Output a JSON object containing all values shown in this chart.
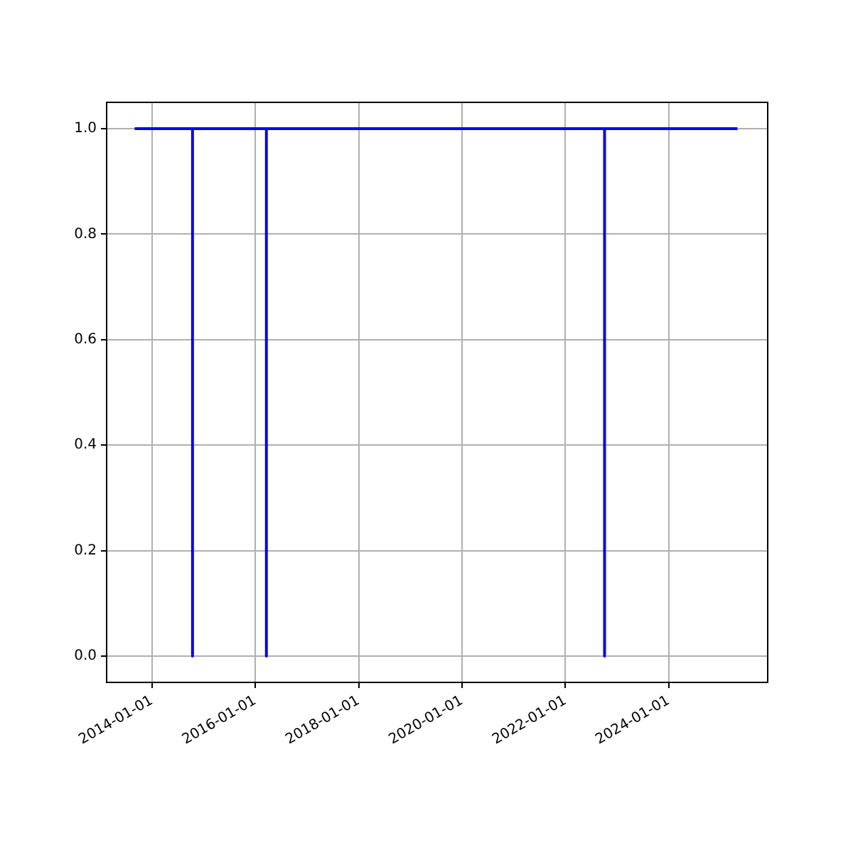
{
  "chart_data": {
    "type": "line",
    "x": [
      "2013-09-01",
      "2014-10-15",
      "2014-10-15",
      "2014-10-15",
      "2016-03-20",
      "2016-03-20",
      "2016-03-20",
      "2022-10-05",
      "2022-10-05",
      "2022-10-05",
      "2025-05-01"
    ],
    "series": [
      {
        "color": "#0000ff",
        "values": [
          1,
          1,
          0,
          1,
          1,
          0,
          1,
          1,
          0,
          1,
          1
        ]
      }
    ],
    "xlim": [
      "2013-02-15",
      "2025-12-01"
    ],
    "xticks": [
      "2014-01-01",
      "2016-01-01",
      "2018-01-01",
      "2020-01-01",
      "2022-01-01",
      "2024-01-01"
    ],
    "ylim": [
      -0.05,
      1.05
    ],
    "yticks": [
      {
        "value": 0,
        "label": "0.0"
      },
      {
        "value": 0.2,
        "label": "0.2"
      },
      {
        "value": 0.4,
        "label": "0.4"
      },
      {
        "value": 0.6,
        "label": "0.6"
      },
      {
        "value": 0.8,
        "label": "0.8"
      },
      {
        "value": 1,
        "label": "1.0"
      }
    ],
    "grid": true,
    "legend": false,
    "marker": "none",
    "line_style": "solid"
  }
}
